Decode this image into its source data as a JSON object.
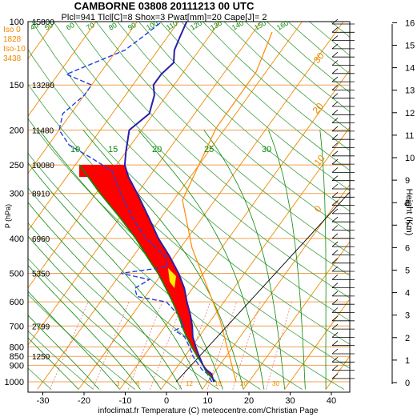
{
  "chart_data": {
    "type": "skew-t",
    "title": "CAMBORNE 03808 20111213 00 UTC",
    "subtitle": "Plcl=941 Tlcl[C]=8 Shox=3 Pwat[mm]=20 Cape[J]= 2",
    "footer": "infoclimat.fr Temperature (C) meteocentre.com/Christian Page",
    "ylabel": "P (hPa)",
    "y2label": "Height (Km)",
    "left_info": [
      {
        "label": "Iso 0",
        "value": "1828"
      },
      {
        "label": "Iso-10",
        "value": "3438"
      }
    ],
    "pressure_ticks": [
      "100",
      "150",
      "200",
      "250",
      "300",
      "400",
      "500",
      "600",
      "700",
      "800",
      "850",
      "900",
      "1000"
    ],
    "height_labels": [
      {
        "p": 100,
        "value": "15800"
      },
      {
        "p": 150,
        "value": "13280"
      },
      {
        "p": 200,
        "value": "11480"
      },
      {
        "p": 250,
        "value": "10080"
      },
      {
        "p": 300,
        "value": "8910"
      },
      {
        "p": 400,
        "value": "6960"
      },
      {
        "p": 500,
        "value": "5350"
      },
      {
        "p": 700,
        "value": "2799"
      },
      {
        "p": 850,
        "value": "1250"
      }
    ],
    "temperature_ticks": [
      "-30",
      "-20",
      "-10",
      "0",
      "10",
      "20",
      "30",
      "40"
    ],
    "km_ticks": [
      "0",
      "1",
      "2",
      "3",
      "4",
      "5",
      "6",
      "7",
      "8",
      "9",
      "10",
      "11",
      "12",
      "13",
      "14",
      "15",
      "16"
    ],
    "mixing_ratio_labels": [
      "3",
      "6",
      "12",
      "18",
      "20",
      "30",
      "40",
      "50",
      "60",
      "70",
      "80",
      "90",
      "100",
      "110",
      "120",
      "130",
      "140",
      "150",
      "160"
    ],
    "theta_e_labels": [
      "10",
      "15",
      "20",
      "25",
      "30"
    ],
    "hodograph_labels": [
      "0",
      "10",
      "20",
      "30"
    ],
    "temperature_profile": [
      {
        "p": 1000,
        "t": 11.5
      },
      {
        "p": 950,
        "t": 9.5
      },
      {
        "p": 925,
        "t": 7.5
      },
      {
        "p": 900,
        "t": 6
      },
      {
        "p": 850,
        "t": 3.5
      },
      {
        "p": 800,
        "t": 1
      },
      {
        "p": 750,
        "t": -1.5
      },
      {
        "p": 700,
        "t": -3.5
      },
      {
        "p": 650,
        "t": -6
      },
      {
        "p": 600,
        "t": -9
      },
      {
        "p": 550,
        "t": -12
      },
      {
        "p": 500,
        "t": -16
      },
      {
        "p": 450,
        "t": -21
      },
      {
        "p": 400,
        "t": -27
      },
      {
        "p": 350,
        "t": -33
      },
      {
        "p": 300,
        "t": -40
      },
      {
        "p": 270,
        "t": -45
      },
      {
        "p": 250,
        "t": -48
      },
      {
        "p": 230,
        "t": -50
      },
      {
        "p": 200,
        "t": -53
      },
      {
        "p": 180,
        "t": -51
      },
      {
        "p": 160,
        "t": -53
      },
      {
        "p": 150,
        "t": -55
      },
      {
        "p": 140,
        "t": -55
      },
      {
        "p": 130,
        "t": -54
      },
      {
        "p": 120,
        "t": -56
      },
      {
        "p": 110,
        "t": -57
      },
      {
        "p": 100,
        "t": -58
      }
    ],
    "dewpoint_profile": [
      {
        "p": 1000,
        "t": 11
      },
      {
        "p": 950,
        "t": 8.5
      },
      {
        "p": 925,
        "t": 6.5
      },
      {
        "p": 900,
        "t": 5
      },
      {
        "p": 850,
        "t": 2
      },
      {
        "p": 800,
        "t": -0.5
      },
      {
        "p": 750,
        "t": -3.5
      },
      {
        "p": 720,
        "t": -7
      },
      {
        "p": 700,
        "t": -5.5
      },
      {
        "p": 650,
        "t": -9
      },
      {
        "p": 600,
        "t": -14
      },
      {
        "p": 580,
        "t": -22
      },
      {
        "p": 550,
        "t": -24
      },
      {
        "p": 520,
        "t": -22
      },
      {
        "p": 500,
        "t": -30
      },
      {
        "p": 480,
        "t": -20
      },
      {
        "p": 450,
        "t": -22
      },
      {
        "p": 400,
        "t": -30
      },
      {
        "p": 350,
        "t": -37
      },
      {
        "p": 300,
        "t": -44
      },
      {
        "p": 260,
        "t": -50
      },
      {
        "p": 240,
        "t": -57
      },
      {
        "p": 220,
        "t": -65
      },
      {
        "p": 200,
        "t": -70
      },
      {
        "p": 180,
        "t": -72
      },
      {
        "p": 160,
        "t": -70
      },
      {
        "p": 150,
        "t": -70
      },
      {
        "p": 140,
        "t": -78
      },
      {
        "p": 120,
        "t": -68
      },
      {
        "p": 110,
        "t": -66
      },
      {
        "p": 100,
        "t": -64
      }
    ],
    "parcel_profile": [
      {
        "p": 1000,
        "t": 12
      },
      {
        "p": 941,
        "t": 8
      },
      {
        "p": 900,
        "t": 6
      },
      {
        "p": 850,
        "t": 3
      },
      {
        "p": 800,
        "t": 0
      },
      {
        "p": 750,
        "t": -3
      },
      {
        "p": 700,
        "t": -6
      },
      {
        "p": 650,
        "t": -9
      },
      {
        "p": 600,
        "t": -12.5
      },
      {
        "p": 550,
        "t": -16.5
      },
      {
        "p": 500,
        "t": -21
      },
      {
        "p": 450,
        "t": -26.5
      },
      {
        "p": 400,
        "t": -32.5
      },
      {
        "p": 350,
        "t": -40
      },
      {
        "p": 300,
        "t": -49
      },
      {
        "p": 250,
        "t": -59
      }
    ],
    "colors": {
      "temperature": "#2a1fa8",
      "dewpoint": "#2040e0",
      "parcel": "#0a8a0a",
      "cin_fill": "#ff0000",
      "cape_fill": "#ffee00",
      "isobar": "#f0a050",
      "isotherm": "#f08a00",
      "mixing_ratio": "#e08080",
      "dry_adiabat": "#40a040",
      "moist_adiabat": "#0a8a0a"
    }
  }
}
